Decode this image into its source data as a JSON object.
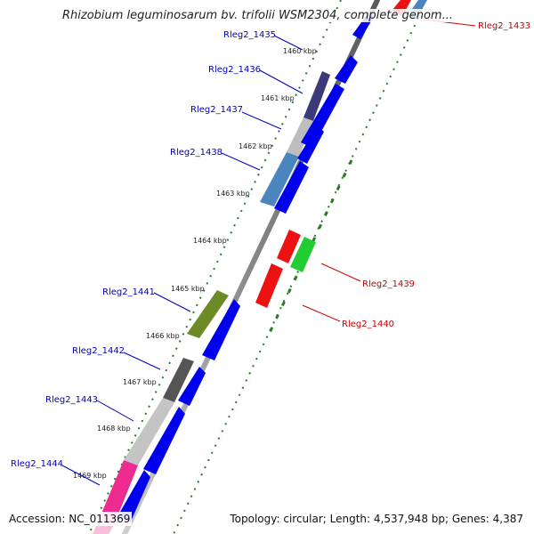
{
  "title": "Rhizobium leguminosarum bv. trifolii WSM2304, complete genom...",
  "footer": {
    "accession": "Accession: NC_011369",
    "stats": "Topology: circular; Length: 4,537,948 bp; Genes: 4,387"
  },
  "colors": {
    "backbone": "#777777",
    "tick": "#2a7a2a",
    "label_forward": "#0000bb",
    "label_reverse": "#cc0000"
  },
  "kbp_ticks": [
    "1460 kbp",
    "1461 kbp",
    "1462 kbp",
    "1463 kbp",
    "1464 kbp",
    "1465 kbp",
    "1466 kbp",
    "1467 kbp",
    "1468 kbp",
    "1469 kbp"
  ],
  "gene_labels_left": [
    "Rleg2_1435",
    "Rleg2_1436",
    "Rleg2_1437",
    "Rleg2_1438",
    "Rleg2_1441",
    "Rleg2_1442",
    "Rleg2_1443",
    "Rleg2_1444"
  ],
  "gene_labels_right": [
    "Rleg2_1433",
    "Rleg2_1439",
    "Rleg2_1440"
  ]
}
